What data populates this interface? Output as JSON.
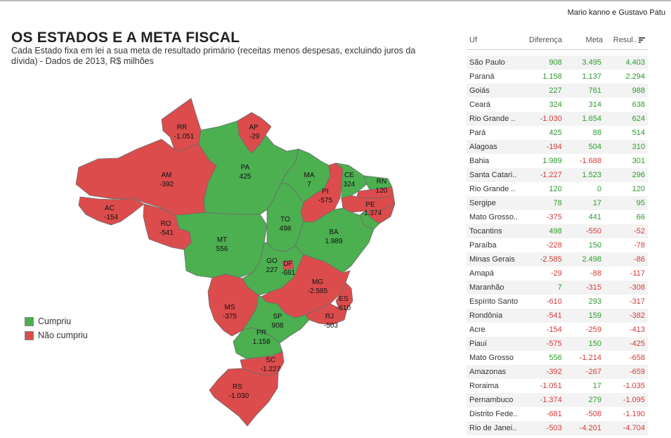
{
  "byline": "Mario kanno e Gustavo Patu",
  "title": "OS ESTADOS E A META FISCAL",
  "subtitle": "Cada Estado fixa em lei a sua meta de resultado primário (receitas menos despesas, excluindo juros da dívida) - Dados de 2013, R$ milhões",
  "colors": {
    "cumpriu": "#4caf50",
    "nao_cumpriu": "#dc4c4c",
    "positive_text": "#2e9a2e",
    "negative_text": "#d43a3a"
  },
  "legend": [
    {
      "label": "Cumpriu",
      "status": "cumpriu"
    },
    {
      "label": "Não cumpriu",
      "status": "nao_cumpriu"
    }
  ],
  "map_labels": [
    {
      "code": "RR",
      "value": "-1.051",
      "status": "nao_cumpriu"
    },
    {
      "code": "AP",
      "value": "-29",
      "status": "nao_cumpriu"
    },
    {
      "code": "AM",
      "value": "-392",
      "status": "nao_cumpriu"
    },
    {
      "code": "PA",
      "value": "425",
      "status": "cumpriu"
    },
    {
      "code": "MA",
      "value": "7",
      "status": "cumpriu"
    },
    {
      "code": "CE",
      "value": "324",
      "status": "cumpriu"
    },
    {
      "code": "RN",
      "value": "120",
      "status": "cumpriu"
    },
    {
      "code": "PI",
      "value": "-575",
      "status": "nao_cumpriu"
    },
    {
      "code": "PE",
      "value": "-1.374",
      "status": "nao_cumpriu"
    },
    {
      "code": "AC",
      "value": "-154",
      "status": "nao_cumpriu"
    },
    {
      "code": "RO",
      "value": "-541",
      "status": "nao_cumpriu"
    },
    {
      "code": "TO",
      "value": "498",
      "status": "cumpriu"
    },
    {
      "code": "BA",
      "value": "1.989",
      "status": "cumpriu"
    },
    {
      "code": "MT",
      "value": "556",
      "status": "cumpriu"
    },
    {
      "code": "GO",
      "value": "227",
      "status": "cumpriu"
    },
    {
      "code": "DF",
      "value": "-681",
      "status": "nao_cumpriu"
    },
    {
      "code": "MG",
      "value": "-2.585",
      "status": "nao_cumpriu"
    },
    {
      "code": "ES",
      "value": "-610",
      "status": "nao_cumpriu"
    },
    {
      "code": "MS",
      "value": "-375",
      "status": "nao_cumpriu"
    },
    {
      "code": "SP",
      "value": "908",
      "status": "cumpriu"
    },
    {
      "code": "RJ",
      "value": "-503",
      "status": "nao_cumpriu"
    },
    {
      "code": "PR",
      "value": "1.158",
      "status": "cumpriu"
    },
    {
      "code": "SC",
      "value": "-1.227",
      "status": "nao_cumpriu"
    },
    {
      "code": "RS",
      "value": "-1.030",
      "status": "nao_cumpriu"
    }
  ],
  "table": {
    "headers": {
      "uf": "Uf",
      "diferenca": "Diferença",
      "meta": "Meta",
      "resultado": "Resul..",
      "sort_icon": "sort-descending-icon"
    },
    "rows": [
      {
        "uf": "São Paulo",
        "diferenca": "908",
        "meta": "3.495",
        "resultado": "4.403"
      },
      {
        "uf": "Paraná",
        "diferenca": "1.158",
        "meta": "1.137",
        "resultado": "2.294"
      },
      {
        "uf": "Goiás",
        "diferenca": "227",
        "meta": "761",
        "resultado": "988"
      },
      {
        "uf": "Ceará",
        "diferenca": "324",
        "meta": "314",
        "resultado": "638"
      },
      {
        "uf": "Rio Grande ..",
        "diferenca": "-1.030",
        "meta": "1.654",
        "resultado": "624"
      },
      {
        "uf": "Pará",
        "diferenca": "425",
        "meta": "88",
        "resultado": "514"
      },
      {
        "uf": "Alagoas",
        "diferenca": "-194",
        "meta": "504",
        "resultado": "310"
      },
      {
        "uf": "Bahia",
        "diferenca": "1.989",
        "meta": "-1.688",
        "resultado": "301"
      },
      {
        "uf": "Santa Catari..",
        "diferenca": "-1.227",
        "meta": "1.523",
        "resultado": "296"
      },
      {
        "uf": "Rio Grande ..",
        "diferenca": "120",
        "meta": "0",
        "resultado": "120"
      },
      {
        "uf": "Sergipe",
        "diferenca": "78",
        "meta": "17",
        "resultado": "95"
      },
      {
        "uf": "Mato Grosso..",
        "diferenca": "-375",
        "meta": "441",
        "resultado": "66"
      },
      {
        "uf": "Tocantins",
        "diferenca": "498",
        "meta": "-550",
        "resultado": "-52"
      },
      {
        "uf": "Paraíba",
        "diferenca": "-228",
        "meta": "150",
        "resultado": "-78"
      },
      {
        "uf": "Minas Gerais",
        "diferenca": "-2.585",
        "meta": "2.498",
        "resultado": "-86"
      },
      {
        "uf": "Amapá",
        "diferenca": "-29",
        "meta": "-88",
        "resultado": "-117"
      },
      {
        "uf": "Maranhão",
        "diferenca": "7",
        "meta": "-315",
        "resultado": "-308"
      },
      {
        "uf": "Espírito Santo",
        "diferenca": "-610",
        "meta": "293",
        "resultado": "-317"
      },
      {
        "uf": "Rondônia",
        "diferenca": "-541",
        "meta": "159",
        "resultado": "-382"
      },
      {
        "uf": "Acre",
        "diferenca": "-154",
        "meta": "-259",
        "resultado": "-413"
      },
      {
        "uf": "Piauí",
        "diferenca": "-575",
        "meta": "150",
        "resultado": "-425"
      },
      {
        "uf": "Mato Grosso",
        "diferenca": "556",
        "meta": "-1.214",
        "resultado": "-658"
      },
      {
        "uf": "Amazonas",
        "diferenca": "-392",
        "meta": "-267",
        "resultado": "-659"
      },
      {
        "uf": "Roraima",
        "diferenca": "-1.051",
        "meta": "17",
        "resultado": "-1.035"
      },
      {
        "uf": "Pernambuco",
        "diferenca": "-1.374",
        "meta": "279",
        "resultado": "-1.095"
      },
      {
        "uf": "Distrito Fede..",
        "diferenca": "-681",
        "meta": "-508",
        "resultado": "-1.190"
      },
      {
        "uf": "Rio de Janei..",
        "diferenca": "-503",
        "meta": "-4.201",
        "resultado": "-4.704"
      }
    ]
  }
}
